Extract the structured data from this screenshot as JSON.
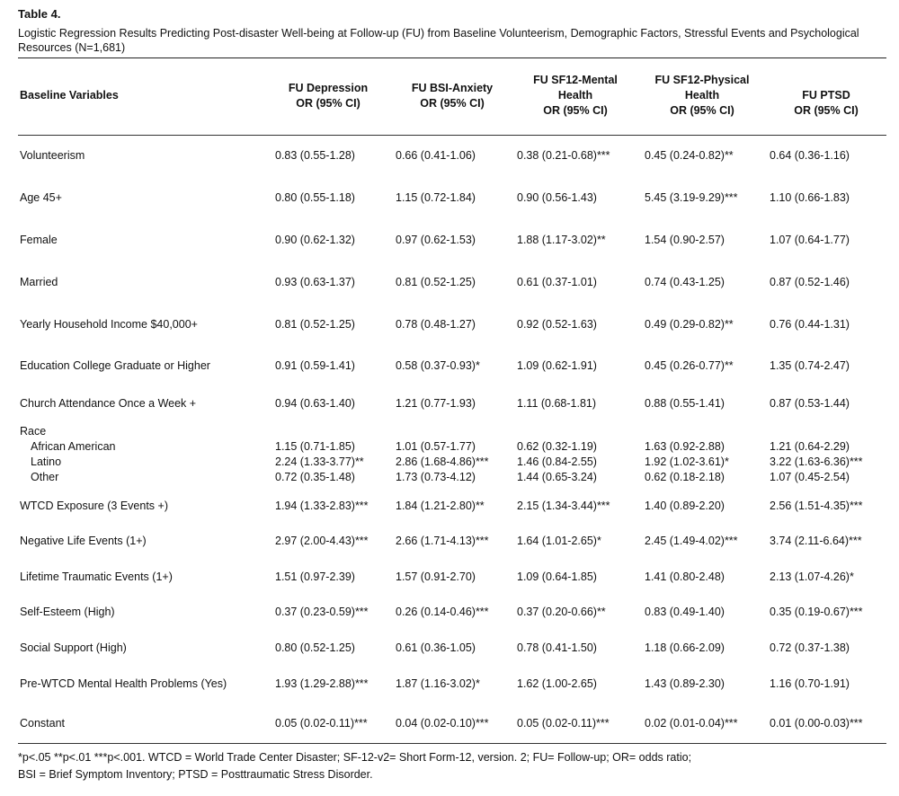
{
  "table": {
    "label": "Table 4.",
    "caption": "Logistic Regression Results Predicting Post-disaster Well-being at Follow-up (FU) from Baseline Volunteerism, Demographic Factors, Stressful Events and Psychological Resources (N=1,681)",
    "headers": [
      "Baseline Variables",
      "FU Depression\nOR (95% CI)",
      "FU BSI-Anxiety\nOR (95% CI)",
      "FU SF12-Mental\nHealth\nOR (95% CI)",
      "FU SF12-Physical\nHealth\nOR (95% CI)",
      "FU PTSD\nOR (95% CI)"
    ],
    "rows": [
      {
        "label": "Volunteerism",
        "values": [
          "0.83 (0.55-1.28)",
          "0.66 (0.41-1.06)",
          "0.38 (0.21-0.68)***",
          "0.45 (0.24-0.82)**",
          "0.64 (0.36-1.16)"
        ]
      },
      {
        "label": "Age 45+",
        "values": [
          "0.80 (0.55-1.18)",
          "1.15 (0.72-1.84)",
          "0.90 (0.56-1.43)",
          "5.45 (3.19-9.29)***",
          "1.10 (0.66-1.83)"
        ]
      },
      {
        "label": "Female",
        "values": [
          "0.90 (0.62-1.32)",
          "0.97 (0.62-1.53)",
          "1.88 (1.17-3.02)**",
          "1.54 (0.90-2.57)",
          "1.07 (0.64-1.77)"
        ]
      },
      {
        "label": "Married",
        "values": [
          "0.93 (0.63-1.37)",
          "0.81 (0.52-1.25)",
          "0.61 (0.37-1.01)",
          "0.74 (0.43-1.25)",
          "0.87 (0.52-1.46)"
        ]
      },
      {
        "label": "Yearly Household Income $40,000+",
        "values": [
          "0.81 (0.52-1.25)",
          "0.78 (0.48-1.27)",
          "0.92 (0.52-1.63)",
          "0.49 (0.29-0.82)**",
          "0.76 (0.44-1.31)"
        ]
      },
      {
        "label": "Education College Graduate or Higher",
        "values": [
          "0.91 (0.59-1.41)",
          "0.58 (0.37-0.93)*",
          "1.09 (0.62-1.91)",
          "0.45 (0.26-0.77)**",
          "1.35 (0.74-2.47)"
        ]
      },
      {
        "label": "Church Attendance Once a Week +",
        "values": [
          "0.94 (0.63-1.40)",
          "1.21 (0.77-1.93)",
          "1.11 (0.68-1.81)",
          "0.88 (0.55-1.41)",
          "0.87 (0.53-1.44)"
        ]
      },
      {
        "label": "Race",
        "values": [
          "",
          "",
          "",
          "",
          ""
        ]
      },
      {
        "label": "African American",
        "values": [
          "1.15 (0.71-1.85)",
          "1.01 (0.57-1.77)",
          "0.62 (0.32-1.19)",
          "1.63 (0.92-2.88)",
          "1.21 (0.64-2.29)"
        ]
      },
      {
        "label": "Latino",
        "values": [
          "2.24 (1.33-3.77)**",
          "2.86 (1.68-4.86)***",
          "1.46 (0.84-2.55)",
          "1.92 (1.02-3.61)*",
          "3.22 (1.63-6.36)***"
        ]
      },
      {
        "label": "Other",
        "values": [
          "0.72 (0.35-1.48)",
          "1.73 (0.73-4.12)",
          "1.44 (0.65-3.24)",
          "0.62 (0.18-2.18)",
          "1.07 (0.45-2.54)"
        ]
      },
      {
        "label": "WTCD Exposure (3 Events +)",
        "values": [
          "1.94 (1.33-2.83)***",
          "1.84 (1.21-2.80)**",
          "2.15 (1.34-3.44)***",
          "1.40 (0.89-2.20)",
          "2.56 (1.51-4.35)***"
        ]
      },
      {
        "label": "Negative Life Events (1+)",
        "values": [
          "2.97 (2.00-4.43)***",
          "2.66 (1.71-4.13)***",
          "1.64 (1.01-2.65)*",
          "2.45 (1.49-4.02)***",
          "3.74 (2.11-6.64)***"
        ]
      },
      {
        "label": "Lifetime Traumatic Events (1+)",
        "values": [
          "1.51 (0.97-2.39)",
          "1.57 (0.91-2.70)",
          "1.09 (0.64-1.85)",
          "1.41 (0.80-2.48)",
          "2.13 (1.07-4.26)*"
        ]
      },
      {
        "label": "Self-Esteem (High)",
        "values": [
          "0.37 (0.23-0.59)***",
          "0.26 (0.14-0.46)***",
          "0.37 (0.20-0.66)**",
          "0.83 (0.49-1.40)",
          "0.35 (0.19-0.67)***"
        ]
      },
      {
        "label": "Social Support (High)",
        "values": [
          "0.80 (0.52-1.25)",
          "0.61 (0.36-1.05)",
          "0.78 (0.41-1.50)",
          "1.18 (0.66-2.09)",
          "0.72 (0.37-1.38)"
        ]
      },
      {
        "label": "Pre-WTCD Mental Health Problems (Yes)",
        "values": [
          "1.93 (1.29-2.88)***",
          "1.87 (1.16-3.02)*",
          "1.62 (1.00-2.65)",
          "1.43 (0.89-2.30)",
          "1.16 (0.70-1.91)"
        ]
      },
      {
        "label": "Constant",
        "values": [
          "0.05 (0.02-0.11)***",
          "0.04 (0.02-0.10)***",
          "0.05 (0.02-0.11)***",
          "0.02 (0.01-0.04)***",
          "0.01 (0.00-0.03)***"
        ]
      }
    ],
    "footnote_line1": "*p<.05   **p<.01   ***p<.001.  WTCD = World Trade Center Disaster; SF-12-v2= Short Form-12, version. 2; FU= Follow-up; OR= odds ratio;",
    "footnote_line2": "BSI = Brief Symptom Inventory; PTSD = Posttraumatic Stress Disorder."
  }
}
